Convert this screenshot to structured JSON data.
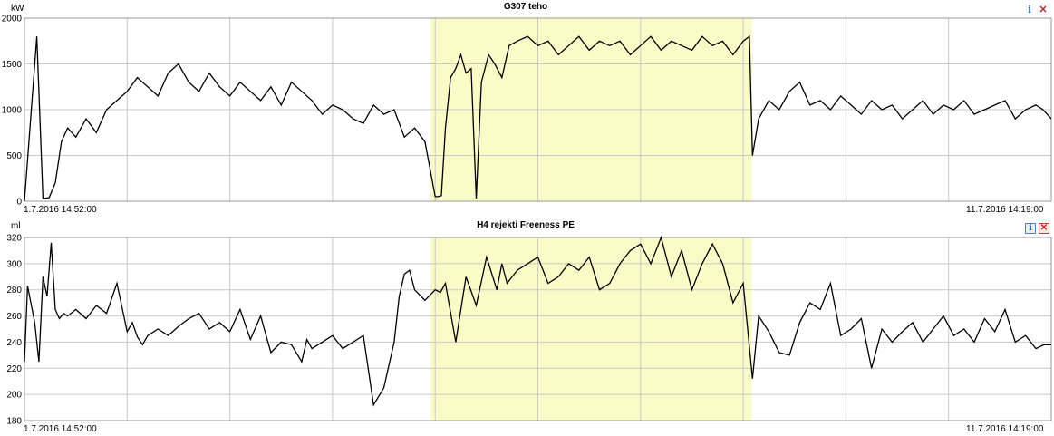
{
  "chart_data": [
    {
      "type": "line",
      "title": "G307 teho",
      "ylabel": "kW",
      "ylim": [
        0,
        2000
      ],
      "yticks": [
        "0",
        "500",
        "1000",
        "1500",
        "2000"
      ],
      "x_start_label": "1.7.2016 14:52:00",
      "x_end_label": "11.7.2016 14:19:00",
      "line_color": "#000000",
      "highlight_color": "#fafcc8",
      "highlight_x": [
        0.3955,
        0.7085
      ],
      "grid": true,
      "series": [
        {
          "x": [
            0.0,
            0.012,
            0.018,
            0.024,
            0.03,
            0.036,
            0.042,
            0.05,
            0.06,
            0.07,
            0.08,
            0.09,
            0.1,
            0.11,
            0.12,
            0.13,
            0.14,
            0.15,
            0.16,
            0.17,
            0.18,
            0.19,
            0.2,
            0.21,
            0.22,
            0.23,
            0.24,
            0.25,
            0.26,
            0.27,
            0.28,
            0.29,
            0.3,
            0.31,
            0.32,
            0.33,
            0.34,
            0.35,
            0.36,
            0.37,
            0.38,
            0.39,
            0.4,
            0.403,
            0.406,
            0.41,
            0.415,
            0.42,
            0.425,
            0.43,
            0.435,
            0.44,
            0.445,
            0.452,
            0.458,
            0.465,
            0.472,
            0.48,
            0.49,
            0.5,
            0.51,
            0.52,
            0.53,
            0.54,
            0.55,
            0.56,
            0.57,
            0.58,
            0.59,
            0.6,
            0.61,
            0.62,
            0.63,
            0.64,
            0.65,
            0.66,
            0.67,
            0.68,
            0.69,
            0.7,
            0.706,
            0.709,
            0.715,
            0.725,
            0.735,
            0.745,
            0.755,
            0.765,
            0.775,
            0.785,
            0.795,
            0.805,
            0.815,
            0.825,
            0.835,
            0.845,
            0.855,
            0.865,
            0.875,
            0.885,
            0.895,
            0.905,
            0.915,
            0.925,
            0.935,
            0.945,
            0.955,
            0.965,
            0.975,
            0.985,
            0.992,
            1.0
          ],
          "y": [
            0,
            1800,
            30,
            40,
            200,
            650,
            800,
            700,
            900,
            750,
            1000,
            1100,
            1200,
            1350,
            1250,
            1150,
            1400,
            1500,
            1300,
            1200,
            1400,
            1250,
            1150,
            1300,
            1200,
            1100,
            1250,
            1050,
            1300,
            1200,
            1100,
            950,
            1050,
            1000,
            900,
            850,
            1050,
            950,
            1000,
            700,
            800,
            650,
            50,
            50,
            60,
            800,
            1350,
            1450,
            1600,
            1400,
            1450,
            30,
            1300,
            1600,
            1500,
            1350,
            1700,
            1750,
            1800,
            1700,
            1750,
            1600,
            1700,
            1800,
            1650,
            1750,
            1700,
            1750,
            1600,
            1700,
            1800,
            1650,
            1750,
            1700,
            1650,
            1800,
            1700,
            1750,
            1600,
            1750,
            1800,
            500,
            900,
            1100,
            1000,
            1200,
            1300,
            1050,
            1100,
            1000,
            1150,
            1050,
            950,
            1100,
            1000,
            1050,
            900,
            1000,
            1100,
            950,
            1050,
            1000,
            1100,
            950,
            1000,
            1050,
            1100,
            900,
            1000,
            1050,
            1000,
            900
          ]
        }
      ]
    },
    {
      "type": "line",
      "title": "H4 rejekti Freeness PE",
      "ylabel": "ml",
      "ylim": [
        180,
        320
      ],
      "yticks": [
        "180",
        "200",
        "220",
        "240",
        "260",
        "280",
        "300",
        "320"
      ],
      "x_start_label": "1.7.2016 14:52:00",
      "x_end_label": "11.7.2016 14:19:00",
      "line_color": "#000000",
      "highlight_color": "#fafcc8",
      "highlight_x": [
        0.3955,
        0.7085
      ],
      "grid": true,
      "series": [
        {
          "x": [
            0.0,
            0.003,
            0.01,
            0.014,
            0.018,
            0.022,
            0.026,
            0.03,
            0.034,
            0.038,
            0.042,
            0.05,
            0.06,
            0.07,
            0.08,
            0.09,
            0.1,
            0.105,
            0.11,
            0.115,
            0.12,
            0.13,
            0.14,
            0.15,
            0.16,
            0.17,
            0.18,
            0.19,
            0.2,
            0.21,
            0.22,
            0.23,
            0.24,
            0.25,
            0.26,
            0.27,
            0.275,
            0.28,
            0.29,
            0.3,
            0.31,
            0.32,
            0.33,
            0.34,
            0.35,
            0.36,
            0.365,
            0.37,
            0.375,
            0.38,
            0.39,
            0.4,
            0.405,
            0.41,
            0.42,
            0.43,
            0.44,
            0.45,
            0.46,
            0.465,
            0.47,
            0.48,
            0.49,
            0.5,
            0.51,
            0.52,
            0.53,
            0.54,
            0.55,
            0.56,
            0.57,
            0.58,
            0.59,
            0.6,
            0.61,
            0.62,
            0.63,
            0.64,
            0.65,
            0.66,
            0.67,
            0.68,
            0.69,
            0.7,
            0.709,
            0.715,
            0.725,
            0.735,
            0.745,
            0.755,
            0.765,
            0.775,
            0.785,
            0.795,
            0.805,
            0.815,
            0.825,
            0.835,
            0.845,
            0.855,
            0.865,
            0.875,
            0.885,
            0.895,
            0.905,
            0.915,
            0.925,
            0.935,
            0.945,
            0.955,
            0.965,
            0.975,
            0.985,
            0.993,
            1.0
          ],
          "y": [
            225,
            283,
            255,
            225,
            290,
            275,
            316,
            265,
            258,
            262,
            260,
            265,
            258,
            268,
            262,
            285,
            248,
            255,
            244,
            238,
            245,
            250,
            245,
            252,
            258,
            262,
            250,
            255,
            248,
            265,
            242,
            260,
            232,
            240,
            238,
            225,
            242,
            235,
            240,
            245,
            235,
            240,
            245,
            192,
            205,
            240,
            275,
            292,
            295,
            280,
            272,
            280,
            278,
            285,
            240,
            290,
            268,
            305,
            280,
            300,
            285,
            295,
            300,
            305,
            285,
            290,
            300,
            295,
            305,
            280,
            285,
            300,
            310,
            315,
            300,
            320,
            290,
            310,
            280,
            300,
            315,
            300,
            270,
            285,
            212,
            260,
            248,
            232,
            230,
            255,
            270,
            265,
            285,
            245,
            250,
            258,
            220,
            250,
            240,
            248,
            255,
            240,
            250,
            260,
            245,
            250,
            240,
            258,
            248,
            265,
            240,
            245,
            235,
            238,
            238
          ]
        }
      ]
    }
  ],
  "icons": {
    "info": "i",
    "close": "✕",
    "info_icon_name": "info-icon",
    "close_icon_name": "close-icon"
  }
}
